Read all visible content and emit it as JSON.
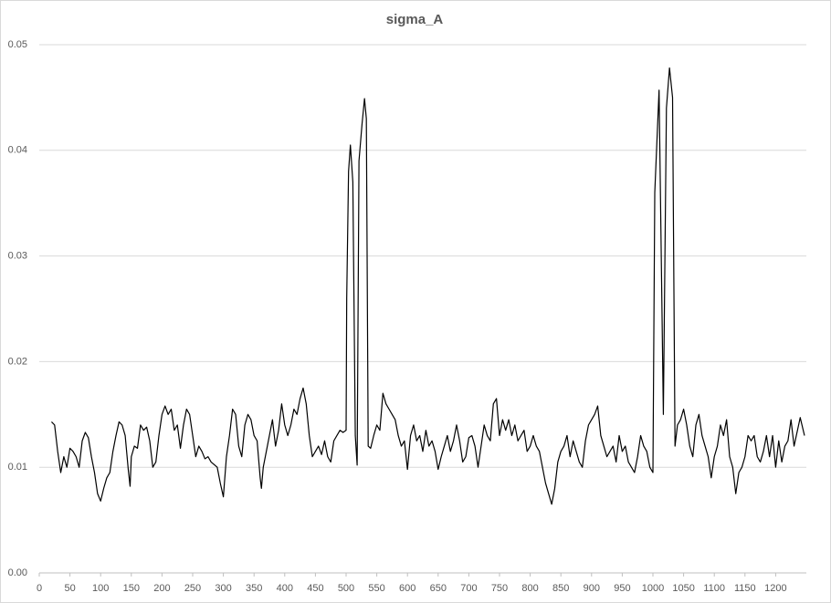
{
  "chart_data": {
    "type": "line",
    "title": "sigma_A",
    "color": "#000000",
    "grid": true,
    "xlim": [
      0,
      1250
    ],
    "xticks": [
      0,
      50,
      100,
      150,
      200,
      250,
      300,
      350,
      400,
      450,
      500,
      550,
      600,
      650,
      700,
      750,
      800,
      850,
      900,
      950,
      1000,
      1050,
      1100,
      1150,
      1200
    ],
    "ylim": [
      0,
      0.05
    ],
    "yticks": [
      {
        "value": 0,
        "label": "0.00"
      },
      {
        "value": 0.01,
        "label": "0.01"
      },
      {
        "value": 0.02,
        "label": "0.02"
      },
      {
        "value": 0.03,
        "label": "0.03"
      },
      {
        "value": 0.04,
        "label": "0.04"
      },
      {
        "value": 0.05,
        "label": "0.05"
      }
    ],
    "x": [
      20,
      25,
      30,
      35,
      40,
      45,
      50,
      55,
      60,
      65,
      70,
      75,
      80,
      85,
      90,
      95,
      100,
      105,
      110,
      115,
      120,
      125,
      130,
      135,
      140,
      145,
      148,
      150,
      155,
      160,
      165,
      170,
      175,
      180,
      185,
      190,
      195,
      200,
      205,
      210,
      215,
      220,
      225,
      230,
      235,
      240,
      245,
      250,
      255,
      260,
      265,
      270,
      275,
      280,
      290,
      295,
      300,
      305,
      310,
      315,
      320,
      325,
      330,
      335,
      340,
      345,
      350,
      355,
      360,
      362,
      365,
      370,
      375,
      380,
      385,
      390,
      395,
      400,
      405,
      410,
      415,
      420,
      425,
      430,
      435,
      440,
      445,
      450,
      455,
      460,
      465,
      470,
      475,
      480,
      485,
      490,
      495,
      500,
      501,
      504,
      507,
      511,
      515,
      518,
      521,
      526,
      530,
      533,
      536,
      540,
      545,
      550,
      555,
      560,
      565,
      570,
      575,
      580,
      585,
      590,
      595,
      600,
      605,
      610,
      615,
      620,
      625,
      630,
      635,
      640,
      645,
      650,
      655,
      660,
      665,
      670,
      675,
      680,
      685,
      690,
      695,
      700,
      705,
      710,
      715,
      720,
      725,
      730,
      735,
      740,
      745,
      750,
      755,
      760,
      765,
      770,
      775,
      780,
      785,
      790,
      795,
      800,
      805,
      810,
      815,
      820,
      825,
      830,
      835,
      840,
      845,
      850,
      855,
      860,
      865,
      870,
      875,
      880,
      885,
      890,
      895,
      900,
      905,
      910,
      915,
      920,
      925,
      930,
      935,
      940,
      945,
      950,
      955,
      960,
      965,
      970,
      975,
      980,
      985,
      990,
      995,
      1000,
      1003,
      1010,
      1017,
      1022,
      1027,
      1032,
      1036,
      1040,
      1045,
      1050,
      1055,
      1060,
      1065,
      1070,
      1075,
      1080,
      1085,
      1090,
      1095,
      1100,
      1105,
      1110,
      1115,
      1120,
      1125,
      1130,
      1135,
      1140,
      1145,
      1150,
      1155,
      1160,
      1165,
      1170,
      1175,
      1180,
      1185,
      1190,
      1195,
      1200,
      1205,
      1210,
      1215,
      1220,
      1225,
      1230,
      1240,
      1247
    ],
    "values": [
      0.0143,
      0.014,
      0.0115,
      0.0095,
      0.011,
      0.01,
      0.0118,
      0.0115,
      0.011,
      0.01,
      0.0125,
      0.0133,
      0.0128,
      0.011,
      0.0095,
      0.0075,
      0.0068,
      0.008,
      0.009,
      0.0095,
      0.0115,
      0.013,
      0.0143,
      0.014,
      0.013,
      0.0098,
      0.0082,
      0.011,
      0.012,
      0.0118,
      0.014,
      0.0135,
      0.0138,
      0.0125,
      0.01,
      0.0105,
      0.013,
      0.015,
      0.0158,
      0.015,
      0.0155,
      0.0135,
      0.014,
      0.0118,
      0.014,
      0.0155,
      0.015,
      0.013,
      0.011,
      0.012,
      0.0115,
      0.0108,
      0.011,
      0.0105,
      0.01,
      0.0085,
      0.0072,
      0.011,
      0.013,
      0.0155,
      0.015,
      0.012,
      0.011,
      0.014,
      0.015,
      0.0145,
      0.013,
      0.0125,
      0.009,
      0.008,
      0.01,
      0.0115,
      0.013,
      0.0145,
      0.012,
      0.0135,
      0.016,
      0.014,
      0.013,
      0.014,
      0.0155,
      0.015,
      0.0165,
      0.0175,
      0.016,
      0.013,
      0.011,
      0.0115,
      0.012,
      0.0112,
      0.0125,
      0.011,
      0.0105,
      0.0125,
      0.013,
      0.0135,
      0.0133,
      0.0135,
      0.026,
      0.038,
      0.0405,
      0.037,
      0.013,
      0.0102,
      0.039,
      0.0425,
      0.0449,
      0.043,
      0.012,
      0.0118,
      0.013,
      0.014,
      0.0135,
      0.017,
      0.016,
      0.0155,
      0.015,
      0.0145,
      0.013,
      0.012,
      0.0125,
      0.0098,
      0.013,
      0.014,
      0.0125,
      0.013,
      0.0115,
      0.0135,
      0.012,
      0.0125,
      0.0115,
      0.0098,
      0.011,
      0.012,
      0.013,
      0.0115,
      0.0125,
      0.014,
      0.0125,
      0.0105,
      0.011,
      0.0128,
      0.013,
      0.012,
      0.01,
      0.012,
      0.014,
      0.013,
      0.0125,
      0.016,
      0.0165,
      0.013,
      0.0145,
      0.0135,
      0.0145,
      0.013,
      0.014,
      0.0125,
      0.013,
      0.0135,
      0.0115,
      0.012,
      0.013,
      0.012,
      0.0115,
      0.01,
      0.0085,
      0.0075,
      0.0065,
      0.008,
      0.0105,
      0.0115,
      0.012,
      0.013,
      0.011,
      0.0125,
      0.0115,
      0.0105,
      0.01,
      0.0125,
      0.014,
      0.0145,
      0.015,
      0.0158,
      0.013,
      0.012,
      0.011,
      0.0115,
      0.012,
      0.0105,
      0.013,
      0.0115,
      0.012,
      0.0105,
      0.01,
      0.0095,
      0.011,
      0.013,
      0.012,
      0.0115,
      0.01,
      0.0095,
      0.036,
      0.0457,
      0.015,
      0.044,
      0.0478,
      0.045,
      0.012,
      0.014,
      0.0145,
      0.0155,
      0.014,
      0.012,
      0.011,
      0.014,
      0.015,
      0.013,
      0.012,
      0.011,
      0.009,
      0.011,
      0.012,
      0.014,
      0.013,
      0.0145,
      0.011,
      0.01,
      0.0075,
      0.0095,
      0.01,
      0.011,
      0.013,
      0.0125,
      0.013,
      0.011,
      0.0105,
      0.0115,
      0.013,
      0.011,
      0.013,
      0.01,
      0.0125,
      0.0105,
      0.012,
      0.0125,
      0.0145,
      0.012,
      0.0147,
      0.013
    ]
  }
}
